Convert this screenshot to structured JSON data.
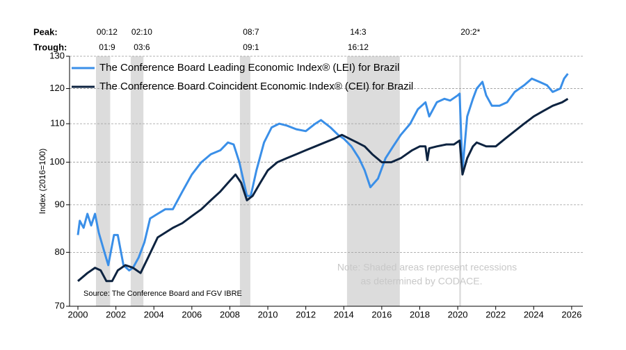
{
  "chart_data": {
    "type": "line",
    "y_label": "Index (2016=100)",
    "peak_label": "Peak:",
    "trough_label": "Trough:",
    "source": "Source: The Conference Board and FGV IBRE",
    "note": [
      "Note: Shaded areas represent recessions",
      "as determined by CODACE."
    ],
    "log_scale": true,
    "grid": true,
    "legend": "top-left",
    "xlim": [
      1999.56,
      2026.59
    ],
    "xticks": [
      2000,
      2002,
      2004,
      2006,
      2008,
      2010,
      2012,
      2014,
      2016,
      2018,
      2020,
      2022,
      2024,
      2026
    ],
    "ylim": [
      70,
      130
    ],
    "yticks": [
      70,
      80,
      90,
      100,
      110,
      120,
      130
    ],
    "recessions": [
      {
        "start": 2000.95,
        "end": 2001.7,
        "peak": "00:12",
        "trough": "01:9"
      },
      {
        "start": 2002.78,
        "end": 2003.45,
        "peak": "02:10",
        "trough": "03:6"
      },
      {
        "start": 2008.53,
        "end": 2009.08,
        "peak": "08:7",
        "trough": "09:1"
      },
      {
        "start": 2014.17,
        "end": 2016.95,
        "peak": "14:3",
        "trough": "16:12"
      },
      {
        "start": 2020.08,
        "end": 2020.17,
        "peak": "20:2*"
      }
    ],
    "series": [
      {
        "name": "The Conference Board Leading Economic Index® (LEI) for Brazil",
        "color": "#3a8fe8",
        "x": [
          2000.0,
          2000.1,
          2000.3,
          2000.5,
          2000.7,
          2000.9,
          2001.1,
          2001.4,
          2001.6,
          2001.9,
          2002.1,
          2002.4,
          2002.7,
          2002.9,
          2003.2,
          2003.5,
          2003.8,
          2004.2,
          2004.6,
          2005.0,
          2005.5,
          2006.0,
          2006.5,
          2007.0,
          2007.5,
          2007.9,
          2008.2,
          2008.5,
          2008.9,
          2009.1,
          2009.4,
          2009.8,
          2010.2,
          2010.6,
          2011.0,
          2011.5,
          2012.0,
          2012.5,
          2012.8,
          2013.3,
          2013.7,
          2014.0,
          2014.4,
          2014.8,
          2015.1,
          2015.4,
          2015.8,
          2016.2,
          2016.6,
          2017.0,
          2017.5,
          2017.9,
          2018.3,
          2018.5,
          2018.9,
          2019.3,
          2019.6,
          2020.0,
          2020.1,
          2020.25,
          2020.5,
          2020.8,
          2021.0,
          2021.3,
          2021.5,
          2021.8,
          2022.2,
          2022.6,
          2023.0,
          2023.5,
          2023.9,
          2024.3,
          2024.7,
          2025.0,
          2025.4,
          2025.6,
          2025.8
        ],
        "values": [
          83.5,
          86.5,
          85,
          88,
          85.5,
          88,
          84,
          80,
          77.5,
          83.5,
          83.5,
          77.5,
          76.5,
          77,
          79,
          82,
          87,
          88,
          89,
          89,
          93,
          97,
          100,
          102,
          103,
          105,
          104.5,
          100,
          92,
          92,
          98,
          105,
          109,
          110,
          109.5,
          108.5,
          108,
          110,
          111,
          109,
          107,
          106,
          104,
          101,
          98,
          94,
          96,
          101,
          104,
          107,
          110,
          114,
          116,
          112,
          116,
          117,
          116.5,
          118,
          118.5,
          98,
          112,
          117,
          120,
          122,
          118,
          115,
          115,
          116,
          119,
          121,
          123,
          122,
          121,
          119,
          120,
          123,
          124.5
        ]
      },
      {
        "name": "The Conference Board Coincident Economic Index® (CEI) for Brazil",
        "color": "#0d2340",
        "x": [
          2000.0,
          2000.5,
          2000.9,
          2001.2,
          2001.5,
          2001.8,
          2002.1,
          2002.5,
          2002.9,
          2003.3,
          2003.7,
          2004.2,
          2004.6,
          2005.0,
          2005.5,
          2006.0,
          2006.5,
          2007.0,
          2007.5,
          2007.9,
          2008.3,
          2008.6,
          2008.9,
          2009.2,
          2009.6,
          2010.0,
          2010.5,
          2011.0,
          2011.5,
          2012.0,
          2012.5,
          2013.0,
          2013.5,
          2013.9,
          2014.3,
          2014.7,
          2015.1,
          2015.5,
          2016.0,
          2016.5,
          2017.0,
          2017.6,
          2018.0,
          2018.3,
          2018.4,
          2018.5,
          2018.9,
          2019.4,
          2019.8,
          2020.1,
          2020.25,
          2020.5,
          2020.8,
          2021.0,
          2021.5,
          2022.0,
          2022.5,
          2023.0,
          2023.5,
          2024.0,
          2024.5,
          2025.0,
          2025.5,
          2025.8
        ],
        "values": [
          74.5,
          76,
          77,
          76.5,
          74.5,
          74.5,
          76.5,
          77.5,
          77,
          76,
          79,
          83,
          84,
          85,
          86,
          87.5,
          89,
          91,
          93,
          95,
          97,
          95,
          91,
          92,
          95,
          98,
          100,
          101,
          102,
          103,
          104,
          105,
          106,
          107,
          106,
          105,
          104,
          102,
          100,
          100,
          101,
          103,
          104,
          104,
          100.5,
          103.5,
          104,
          104.5,
          104.5,
          105.5,
          97,
          101,
          104,
          105,
          104,
          104,
          106,
          108,
          110,
          112,
          113.5,
          115,
          116,
          117
        ]
      }
    ]
  }
}
